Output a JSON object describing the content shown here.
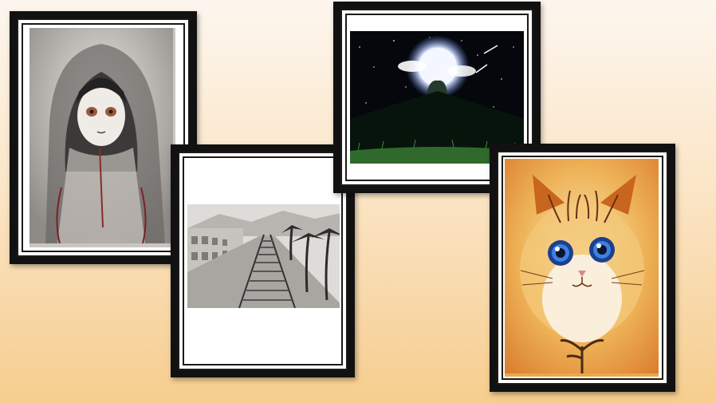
{
  "slide": {
    "artworks": [
      {
        "icon": "hooded-girl-sketch-icon"
      },
      {
        "icon": "railway-track-sketch-icon"
      },
      {
        "icon": "moonlit-night-painting-icon"
      },
      {
        "icon": "fluffy-cat-painting-icon"
      }
    ]
  },
  "colors": {
    "frame": "#111111",
    "mat": "#fffdf8",
    "background_top": "#fdf6ee",
    "background_bottom": "#f6cd8e"
  }
}
